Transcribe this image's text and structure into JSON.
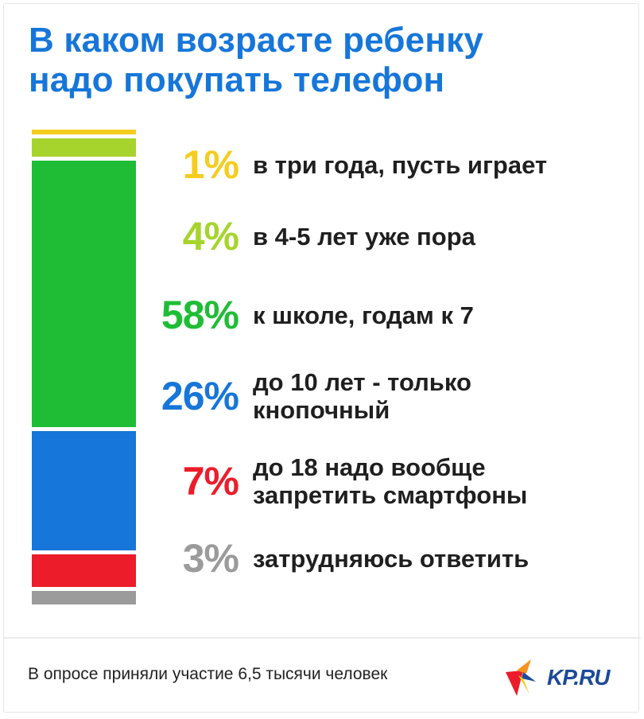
{
  "title_lines": [
    "В каком возрасте ребенку",
    "надо покупать телефон"
  ],
  "chart_data": {
    "type": "bar",
    "stacked": true,
    "orientation": "vertical",
    "title": "В каком возрасте ребенку надо покупать телефон",
    "categories": [
      "в три года, пусть играет",
      "в 4-5 лет уже пора",
      "к школе, годам к 7",
      "до 10 лет - только кнопочный",
      "до 18 надо вообще запретить смартфоны",
      "затрудняюсь ответить"
    ],
    "values": [
      1,
      4,
      58,
      26,
      7,
      3
    ],
    "value_labels": [
      "1%",
      "4%",
      "58%",
      "26%",
      "7%",
      "3%"
    ],
    "desc_lines": [
      [
        "в три года, пусть играет"
      ],
      [
        "в 4-5 лет уже пора"
      ],
      [
        "к школе, годам к 7"
      ],
      [
        "до 10 лет - только",
        "кнопочный"
      ],
      [
        "до 18 надо вообще",
        "запретить смартфоны"
      ],
      [
        "затрудняюсь ответить"
      ]
    ],
    "colors": [
      "#f5cd1f",
      "#a7d42c",
      "#1fbd35",
      "#1676d9",
      "#ec1c2a",
      "#9b9b9b"
    ],
    "unit": "%"
  },
  "footnote": "В опросе приняли участие 6,5 тысячи человек",
  "logo_text": "KP.RU",
  "brand_colors": {
    "title": "#1676d9",
    "logo_blue": "#1c4a9a",
    "logo_red": "#ec1c2a",
    "logo_orange": "#f7931e"
  }
}
